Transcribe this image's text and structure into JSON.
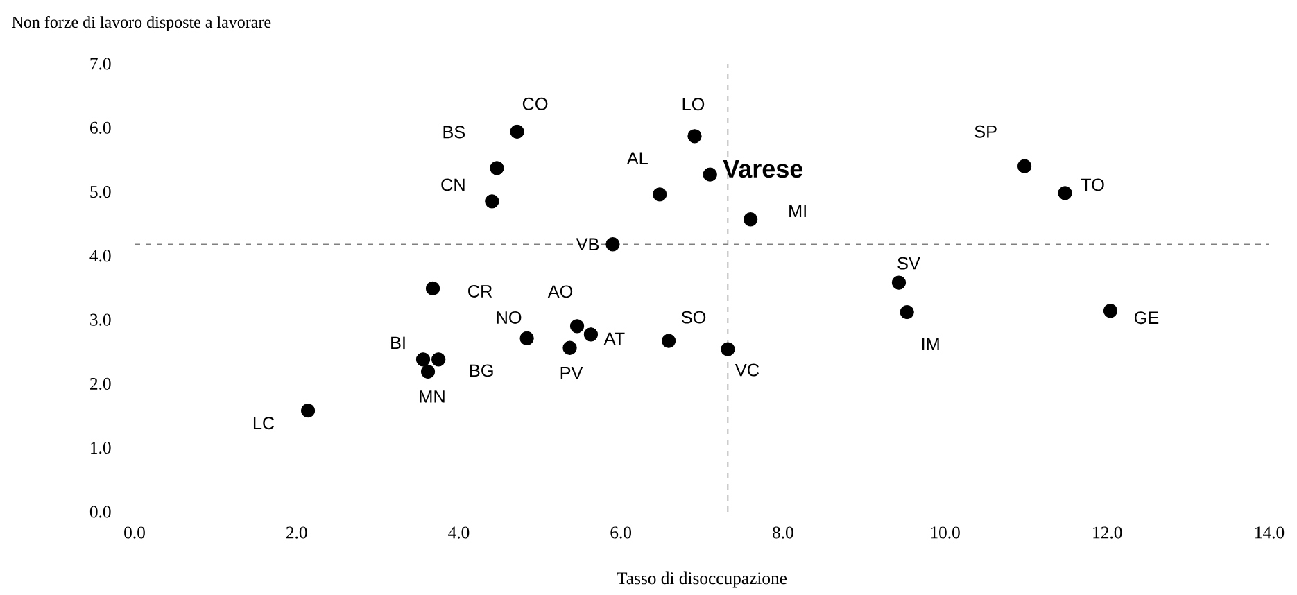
{
  "chart_data": {
    "type": "scatter",
    "xlabel": "Tasso di disoccupazione",
    "ylabel": "Non forze di lavoro disposte a lavorare",
    "xlim": [
      0,
      14
    ],
    "ylim": [
      0,
      7
    ],
    "xticks": [
      {
        "value": 0,
        "label": "0.0"
      },
      {
        "value": 2,
        "label": "2.0"
      },
      {
        "value": 4,
        "label": "4.0"
      },
      {
        "value": 6,
        "label": "6.0"
      },
      {
        "value": 8,
        "label": "8.0"
      },
      {
        "value": 10,
        "label": "10.0"
      },
      {
        "value": 12,
        "label": "12.0"
      },
      {
        "value": 14,
        "label": "14.0"
      }
    ],
    "yticks": [
      {
        "value": 0,
        "label": "0.0"
      },
      {
        "value": 1,
        "label": "1.0"
      },
      {
        "value": 2,
        "label": "2.0"
      },
      {
        "value": 3,
        "label": "3.0"
      },
      {
        "value": 4,
        "label": "4.0"
      },
      {
        "value": 5,
        "label": "5.0"
      },
      {
        "value": 6,
        "label": "6.0"
      },
      {
        "value": 7,
        "label": "7.0"
      }
    ],
    "series": [
      {
        "color": "#000000",
        "x": [
          2.14,
          3.56,
          3.75,
          3.62,
          3.68,
          4.41,
          4.47,
          4.72,
          4.84,
          5.46,
          5.63,
          5.37,
          5.9,
          6.59,
          7.32,
          6.48,
          6.91,
          7.1,
          7.6,
          10.98,
          11.48,
          9.43,
          9.53,
          12.04
        ],
        "values": [
          1.58,
          2.38,
          2.38,
          2.19,
          3.49,
          4.85,
          5.37,
          5.94,
          2.71,
          2.9,
          2.77,
          2.56,
          4.18,
          2.67,
          2.54,
          4.96,
          5.87,
          5.27,
          4.57,
          5.4,
          4.98,
          3.58,
          3.12,
          3.14
        ]
      }
    ],
    "ref_lines": [
      {
        "axis": "x",
        "value": 7.32,
        "color": "#808080",
        "line_style": "dashed"
      },
      {
        "axis": "y",
        "value": 4.18,
        "color": "#808080",
        "line_style": "dashed"
      }
    ],
    "annotations": [
      {
        "text": "LC",
        "x": 2.14,
        "y": 1.58
      },
      {
        "text": "BI",
        "x": 3.56,
        "y": 2.38
      },
      {
        "text": "BG",
        "x": 3.75,
        "y": 2.38
      },
      {
        "text": "MN",
        "x": 3.62,
        "y": 2.19
      },
      {
        "text": "CR",
        "x": 3.68,
        "y": 3.49
      },
      {
        "text": "CN",
        "x": 4.41,
        "y": 4.85
      },
      {
        "text": "BS",
        "x": 4.47,
        "y": 5.37
      },
      {
        "text": "CO",
        "x": 4.72,
        "y": 5.94
      },
      {
        "text": "NO",
        "x": 4.84,
        "y": 2.71
      },
      {
        "text": "AO",
        "x": 5.46,
        "y": 2.9
      },
      {
        "text": "AT",
        "x": 5.63,
        "y": 2.77
      },
      {
        "text": "PV",
        "x": 5.37,
        "y": 2.56
      },
      {
        "text": "VB",
        "x": 5.9,
        "y": 4.18
      },
      {
        "text": "SO",
        "x": 6.59,
        "y": 2.67
      },
      {
        "text": "VC",
        "x": 7.32,
        "y": 2.54
      },
      {
        "text": "AL",
        "x": 6.48,
        "y": 4.96
      },
      {
        "text": "LO",
        "x": 6.91,
        "y": 5.87
      },
      {
        "text": "**Varese**",
        "x": 7.1,
        "y": 5.27
      },
      {
        "text": "MI",
        "x": 7.6,
        "y": 4.57
      },
      {
        "text": "SP",
        "x": 10.98,
        "y": 5.4
      },
      {
        "text": "TO",
        "x": 11.48,
        "y": 4.98
      },
      {
        "text": "SV",
        "x": 9.43,
        "y": 3.58
      },
      {
        "text": "IM",
        "x": 9.53,
        "y": 3.12
      },
      {
        "text": "GE",
        "x": 12.04,
        "y": 3.14
      }
    ]
  }
}
